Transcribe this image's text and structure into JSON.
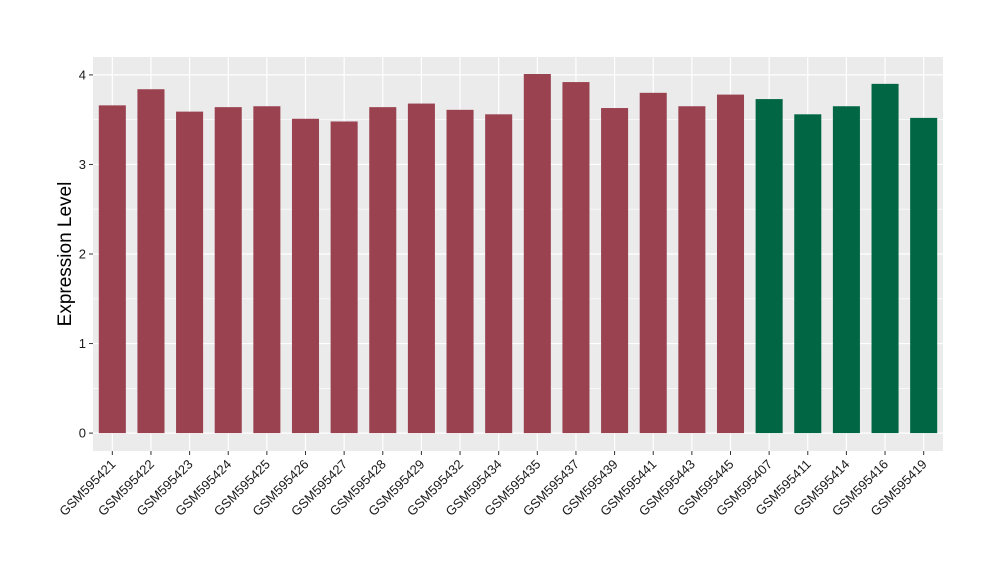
{
  "chart_data": {
    "type": "bar",
    "title": "",
    "xlabel": "",
    "ylabel": "Expression Level",
    "ylim": [
      -0.2,
      4.2
    ],
    "yticks": [
      0,
      1,
      2,
      3,
      4
    ],
    "grid": true,
    "legend": "none",
    "categories": [
      "GSM595421",
      "GSM595422",
      "GSM595423",
      "GSM595424",
      "GSM595425",
      "GSM595426",
      "GSM595427",
      "GSM595428",
      "GSM595429",
      "GSM595432",
      "GSM595434",
      "GSM595435",
      "GSM595437",
      "GSM595439",
      "GSM595441",
      "GSM595443",
      "GSM595445",
      "GSM595407",
      "GSM595411",
      "GSM595414",
      "GSM595416",
      "GSM595419"
    ],
    "values": [
      3.66,
      3.84,
      3.59,
      3.64,
      3.65,
      3.51,
      3.48,
      3.64,
      3.68,
      3.61,
      3.56,
      4.01,
      3.92,
      3.63,
      3.8,
      3.65,
      3.78,
      3.73,
      3.56,
      3.65,
      3.9,
      3.52
    ],
    "groups": [
      "a",
      "a",
      "a",
      "a",
      "a",
      "a",
      "a",
      "a",
      "a",
      "a",
      "a",
      "a",
      "a",
      "a",
      "a",
      "a",
      "a",
      "b",
      "b",
      "b",
      "b",
      "b"
    ],
    "group_colors": {
      "a": "#9a4250",
      "b": "#006644"
    },
    "panel_background": "#ebebeb",
    "gridline_color": "#ffffff"
  }
}
